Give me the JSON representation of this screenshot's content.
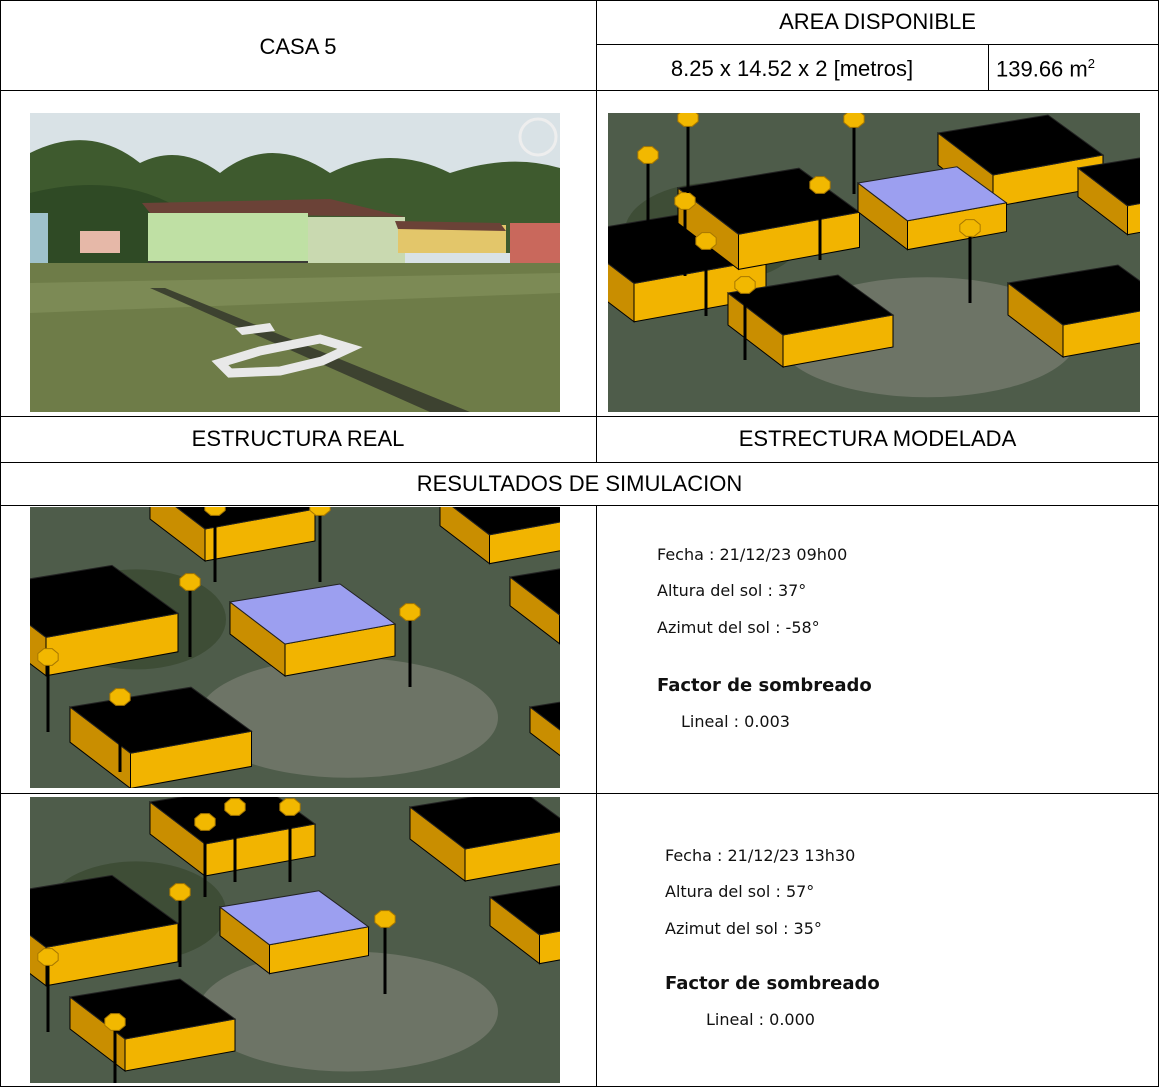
{
  "header": {
    "house": "CASA 5",
    "area_title": "AREA DISPONIBLE",
    "dimensions": "8.25 x 14.52 x 2 [metros]",
    "area": "139.66 m",
    "area_exponent": "2"
  },
  "captions": {
    "real": "ESTRUCTURA REAL",
    "modeled": "ESTRECTURA MODELADA"
  },
  "results_title": "RESULTADOS DE SIMULACION",
  "results": [
    {
      "fecha": "Fecha : 21/12/23 09h00",
      "altura": "Altura del sol : 37°",
      "azimut": "Azimut del sol : -58°",
      "factor_title": "Factor de sombreado",
      "lineal": "Lineal : 0.003"
    },
    {
      "fecha": "Fecha : 21/12/23 13h30",
      "altura": "Altura del sol : 57°",
      "azimut": "Azimut del sol : 35°",
      "factor_title": "Factor de sombreado",
      "lineal": "Lineal : 0.000"
    }
  ]
}
